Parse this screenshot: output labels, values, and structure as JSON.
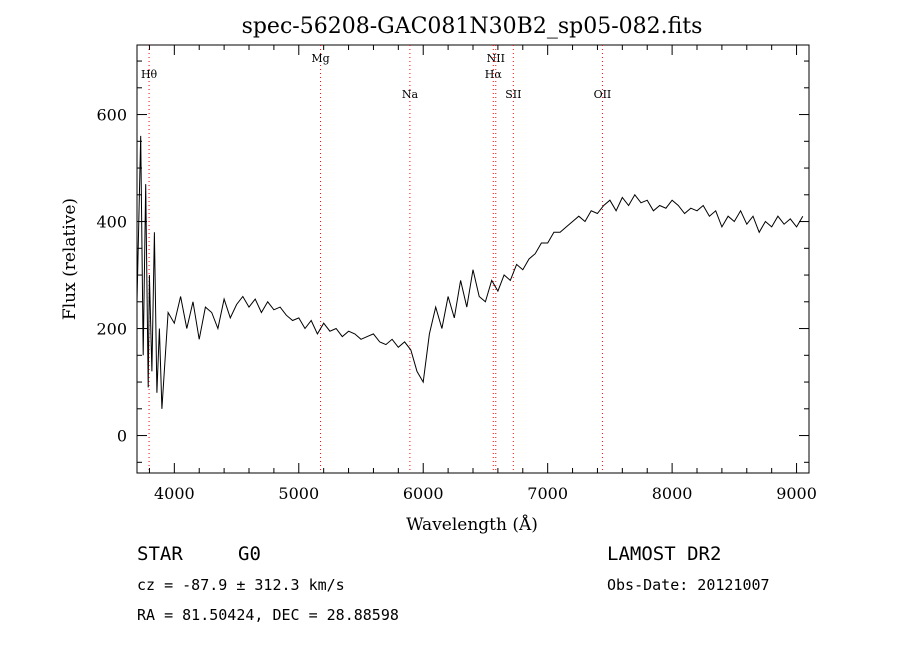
{
  "chart_data": {
    "type": "line",
    "title": "spec-56208-GAC081N30B2_sp05-082.fits",
    "xlabel": "Wavelength (Å)",
    "ylabel": "Flux (relative)",
    "xlim": [
      3700,
      9100
    ],
    "ylim": [
      -70,
      730
    ],
    "x_ticks": [
      4000,
      5000,
      6000,
      7000,
      8000,
      9000
    ],
    "x_tick_labels": [
      "4000",
      "5000",
      "6000",
      "7000",
      "8000",
      "9000"
    ],
    "y_ticks": [
      0,
      200,
      400,
      600
    ],
    "y_tick_labels": [
      "0",
      "200",
      "400",
      "600"
    ],
    "grid": false,
    "line_color": "#000000",
    "marker_color": "#ff0000",
    "series": [
      {
        "x": [
          3700,
          3730,
          3750,
          3770,
          3790,
          3800,
          3820,
          3840,
          3860,
          3880,
          3900,
          3950,
          4000,
          4050,
          4100,
          4150,
          4200,
          4250,
          4300,
          4350,
          4400,
          4450,
          4500,
          4550,
          4600,
          4650,
          4700,
          4750,
          4800,
          4850,
          4900,
          4950,
          5000,
          5050,
          5100,
          5150,
          5200,
          5250,
          5300,
          5350,
          5400,
          5450,
          5500,
          5550,
          5600,
          5650,
          5700,
          5750,
          5800,
          5850,
          5900,
          5950,
          6000,
          6050,
          6100,
          6150,
          6200,
          6250,
          6300,
          6350,
          6400,
          6450,
          6500,
          6550,
          6600,
          6650,
          6700,
          6750,
          6800,
          6850,
          6900,
          6950,
          7000,
          7050,
          7100,
          7150,
          7200,
          7250,
          7300,
          7350,
          7400,
          7450,
          7500,
          7550,
          7600,
          7650,
          7700,
          7750,
          7800,
          7850,
          7900,
          7950,
          8000,
          8050,
          8100,
          8150,
          8200,
          8250,
          8300,
          8350,
          8400,
          8450,
          8500,
          8550,
          8600,
          8650,
          8700,
          8750,
          8800,
          8850,
          8900,
          8950,
          9000,
          9050
        ],
        "y": [
          250,
          560,
          150,
          470,
          90,
          300,
          120,
          380,
          80,
          200,
          50,
          230,
          210,
          260,
          200,
          250,
          180,
          240,
          230,
          200,
          255,
          220,
          245,
          260,
          240,
          255,
          230,
          250,
          235,
          240,
          225,
          215,
          220,
          200,
          215,
          190,
          210,
          195,
          200,
          185,
          195,
          190,
          180,
          185,
          190,
          175,
          170,
          180,
          165,
          175,
          160,
          120,
          100,
          190,
          240,
          200,
          260,
          220,
          290,
          240,
          310,
          260,
          250,
          290,
          270,
          300,
          290,
          320,
          310,
          330,
          340,
          360,
          360,
          380,
          380,
          390,
          400,
          410,
          400,
          420,
          415,
          430,
          440,
          420,
          445,
          430,
          450,
          435,
          440,
          420,
          430,
          425,
          440,
          430,
          415,
          425,
          420,
          430,
          410,
          420,
          390,
          410,
          400,
          420,
          395,
          410,
          380,
          400,
          390,
          410,
          395,
          405,
          390,
          410
        ]
      }
    ],
    "lines": [
      {
        "label": "Hθ",
        "x": 3797,
        "level": 1
      },
      {
        "label": "Mg",
        "x": 5175,
        "level": 0
      },
      {
        "label": "Na",
        "x": 5893,
        "level": 2
      },
      {
        "label": "Hα",
        "x": 6563,
        "level": 1
      },
      {
        "label": "NII",
        "x": 6583,
        "level": 0
      },
      {
        "label": "SII",
        "x": 6724,
        "level": 2
      },
      {
        "label": "OII",
        "x": 7440,
        "level": 2
      }
    ]
  },
  "footer": {
    "object_class": "STAR",
    "subclass": "G0",
    "survey": "LAMOST DR2",
    "cz": "cz = -87.9 ± 312.3 km/s",
    "obs_date": "Obs-Date: 20121007",
    "coords": "RA =  81.50424, DEC =  28.88598"
  }
}
